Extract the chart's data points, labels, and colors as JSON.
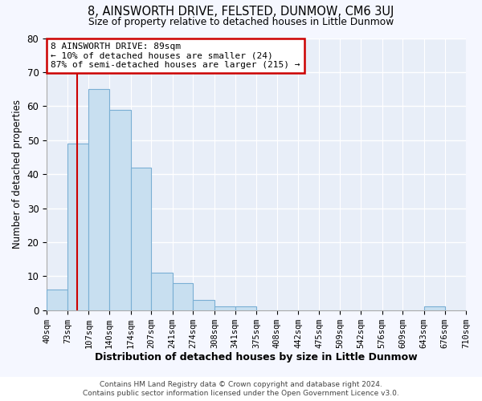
{
  "title": "8, AINSWORTH DRIVE, FELSTED, DUNMOW, CM6 3UJ",
  "subtitle": "Size of property relative to detached houses in Little Dunmow",
  "xlabel": "Distribution of detached houses by size in Little Dunmow",
  "ylabel": "Number of detached properties",
  "bar_edges": [
    40,
    73,
    107,
    140,
    174,
    207,
    241,
    274,
    308,
    341,
    375,
    408,
    442,
    475,
    509,
    542,
    576,
    609,
    643,
    676,
    710
  ],
  "bar_heights": [
    6,
    49,
    65,
    59,
    42,
    11,
    8,
    3,
    1,
    1,
    0,
    0,
    0,
    0,
    0,
    0,
    0,
    0,
    1,
    0
  ],
  "bar_color": "#c8dff0",
  "bar_edge_color": "#7aafd4",
  "vline_x": 89,
  "vline_color": "#cc0000",
  "ylim": [
    0,
    80
  ],
  "yticks": [
    0,
    10,
    20,
    30,
    40,
    50,
    60,
    70,
    80
  ],
  "annotation_text": "8 AINSWORTH DRIVE: 89sqm\n← 10% of detached houses are smaller (24)\n87% of semi-detached houses are larger (215) →",
  "annotation_box_color": "#ffffff",
  "annotation_box_edge_color": "#cc0000",
  "footer_line1": "Contains HM Land Registry data © Crown copyright and database right 2024.",
  "footer_line2": "Contains public sector information licensed under the Open Government Licence v3.0.",
  "plot_bg_color": "#e8eef8",
  "fig_bg_color": "#f5f7ff",
  "grid_color": "#ffffff"
}
